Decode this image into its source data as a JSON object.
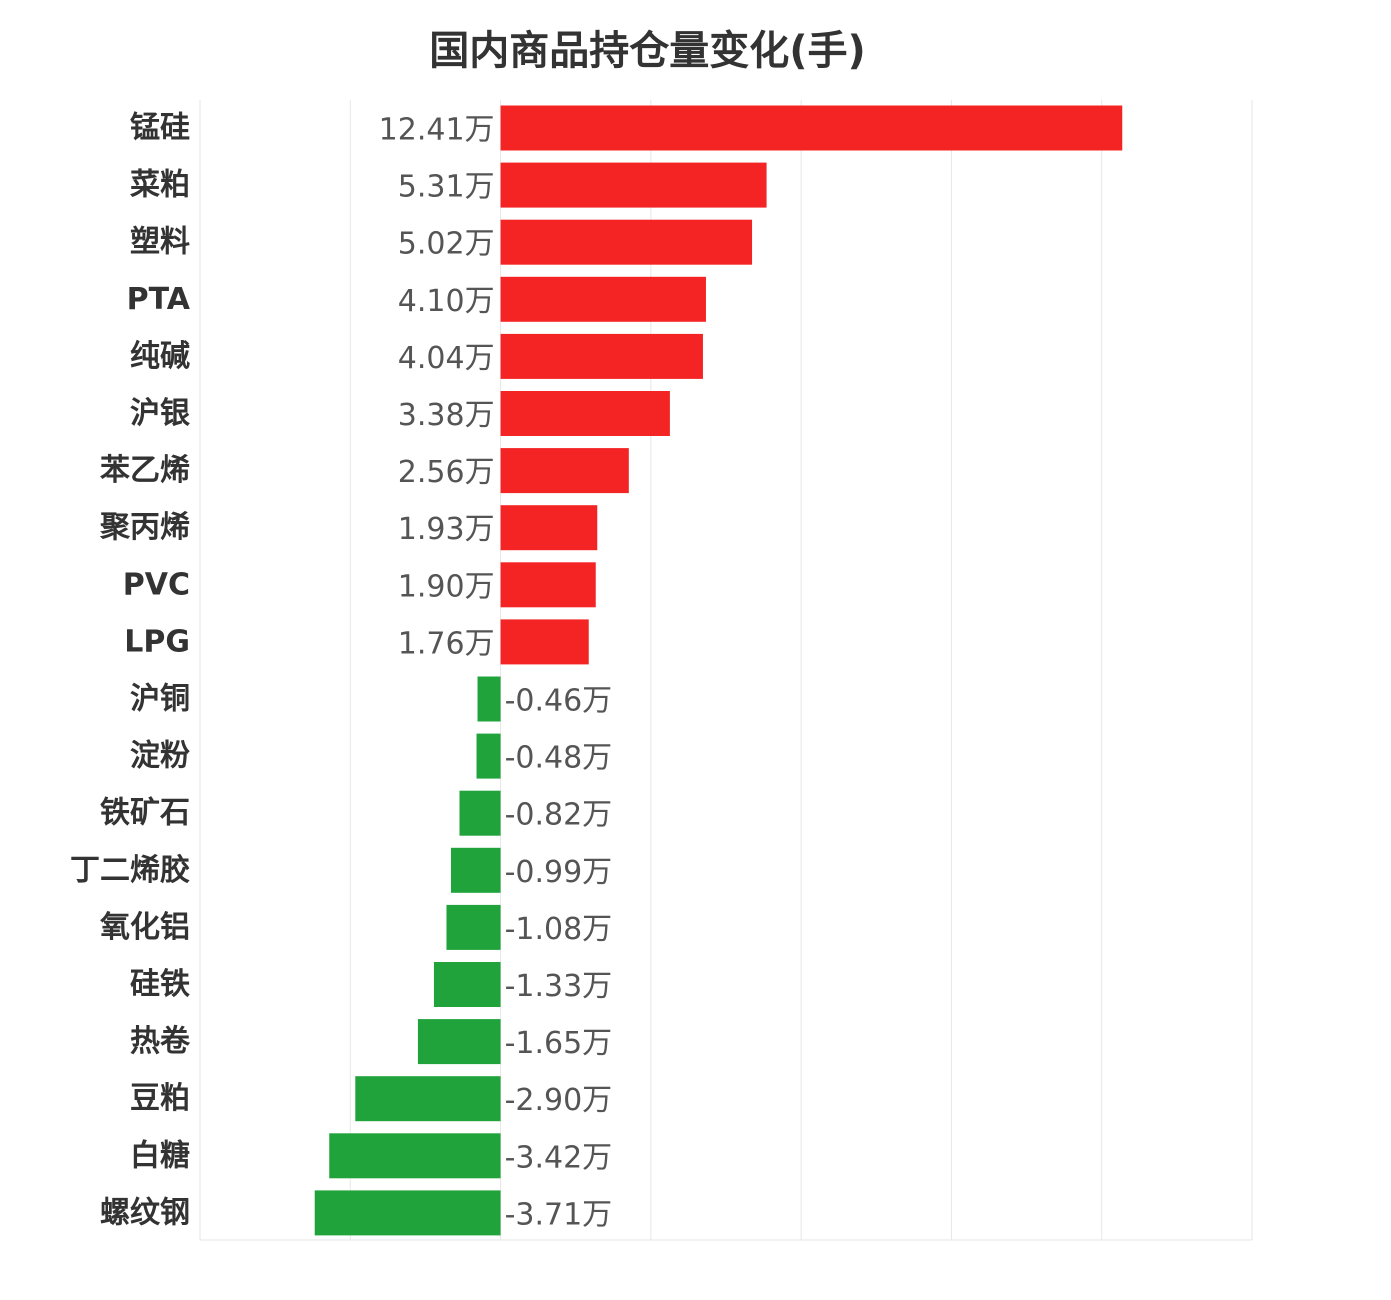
{
  "chart_data": {
    "type": "bar",
    "orientation": "horizontal",
    "title": "国内商品持仓量变化(手)",
    "unit_suffix": "万",
    "categories": [
      "锰硅",
      "菜粕",
      "塑料",
      "PTA",
      "纯碱",
      "沪银",
      "苯乙烯",
      "聚丙烯",
      "PVC",
      "LPG",
      "沪铜",
      "淀粉",
      "铁矿石",
      "丁二烯胶",
      "氧化铝",
      "硅铁",
      "热卷",
      "豆粕",
      "白糖",
      "螺纹钢"
    ],
    "values": [
      12.41,
      5.31,
      5.02,
      4.1,
      4.04,
      3.38,
      2.56,
      1.93,
      1.9,
      1.76,
      -0.46,
      -0.48,
      -0.82,
      -0.99,
      -1.08,
      -1.33,
      -1.65,
      -2.9,
      -3.42,
      -3.71
    ],
    "value_labels": [
      "12.41万",
      "5.31万",
      "5.02万",
      "4.10万",
      "4.04万",
      "3.38万",
      "2.56万",
      "1.93万",
      "1.90万",
      "1.76万",
      "-0.46万",
      "-0.48万",
      "-0.82万",
      "-0.99万",
      "-1.08万",
      "-1.33万",
      "-1.65万",
      "-2.90万",
      "-3.42万",
      "-3.71万"
    ],
    "xlim": [
      -6,
      15
    ],
    "grid": true,
    "colors": {
      "positive": "#f42424",
      "negative": "#21a33b",
      "grid": "#e6e6e6"
    }
  }
}
